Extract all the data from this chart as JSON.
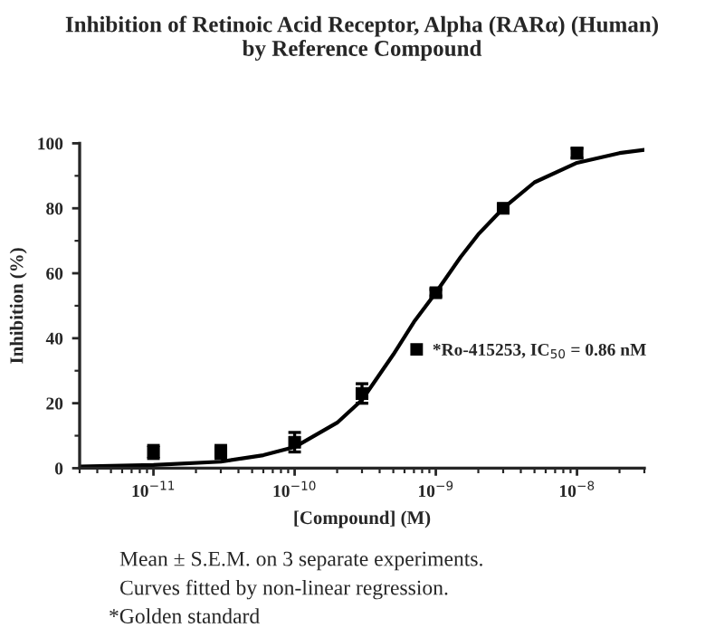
{
  "chart_data": {
    "type": "scatter",
    "title": "Inhibition of Retinoic Acid Receptor, Alpha (RARα) (Human)\nby Reference Compound",
    "xlabel": "[Compound] (M)",
    "ylabel": "Inhibition (%)",
    "log": "x",
    "xlim": [
      3e-12,
      3e-08
    ],
    "xticks": [
      {
        "value": 1e-11,
        "label": "10$^{−11}$"
      },
      {
        "value": 1e-10,
        "label": "10$^{−10}$"
      },
      {
        "value": 1e-09,
        "label": "10$^{−9}$"
      },
      {
        "value": 1e-08,
        "label": "10$^{−8}$"
      }
    ],
    "ylim": [
      0,
      100
    ],
    "yticks": [
      0,
      20,
      40,
      60,
      80,
      100
    ],
    "grid": false,
    "legend": "right",
    "series": [
      {
        "name": "*Ro-415253, IC$_{50}$ = 0.86 nM",
        "marker": "square",
        "color": "#000000",
        "x": [
          1e-11,
          3e-11,
          1e-10,
          3e-10,
          1e-09,
          3e-09,
          1e-08
        ],
        "values": [
          5,
          5,
          8,
          23,
          54,
          80,
          97
        ],
        "errors": [
          2,
          2,
          3,
          3,
          1,
          1,
          1.5
        ]
      },
      {
        "type": "line",
        "color": "#000000",
        "line_style": "solid",
        "x": [
          3e-12,
          1e-11,
          3e-11,
          6e-11,
          1e-10,
          2e-10,
          3e-10,
          5e-10,
          7e-10,
          1e-09,
          1.5e-09,
          2e-09,
          3e-09,
          5e-09,
          1e-08,
          2e-08,
          3e-08
        ],
        "values": [
          0.5,
          1,
          2,
          4,
          6.5,
          14,
          21,
          35,
          45,
          54,
          65,
          72,
          80,
          88,
          94,
          97,
          98
        ]
      }
    ],
    "annotations": [
      "Mean ± S.E.M. on 3 separate experiments.",
      "Curves fitted by non-linear regression.",
      "*Golden standard"
    ]
  }
}
